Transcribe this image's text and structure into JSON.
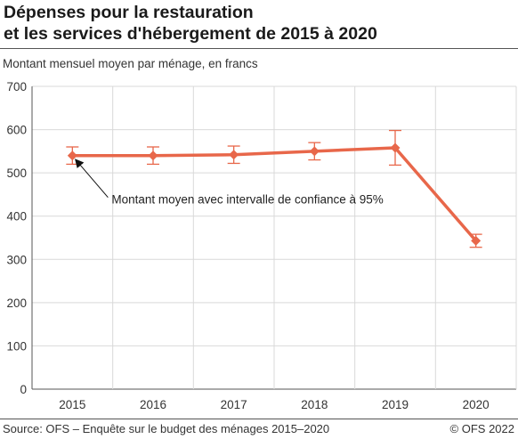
{
  "title_line1": "Dépenses pour la restauration",
  "title_line2": "et les services d'hébergement de 2015 à 2020",
  "footer": {
    "source": "Source: OFS – Enquête sur le budget des ménages 2015–2020",
    "copyright": "© OFS 2022"
  },
  "colors": {
    "series": "#e8674a",
    "grid": "#d9d9d9",
    "axis": "#555555"
  },
  "chart_data": {
    "type": "line",
    "title": "Dépenses pour la restauration et les services d'hébergement de 2015 à 2020",
    "ylabel": "Montant mensuel moyen par ménage, en francs",
    "xlabel": "",
    "categories": [
      "2015",
      "2016",
      "2017",
      "2018",
      "2019",
      "2020"
    ],
    "series": [
      {
        "values": [
          540,
          540,
          542,
          550,
          558,
          343
        ],
        "ci_lower": [
          520,
          520,
          522,
          530,
          518,
          328
        ],
        "ci_upper": [
          560,
          560,
          562,
          570,
          598,
          358
        ]
      }
    ],
    "ylim": [
      0,
      700
    ],
    "yticks": [
      0,
      100,
      200,
      300,
      400,
      500,
      600,
      700
    ],
    "grid": true,
    "legend": "none",
    "annotation": {
      "text": "Montant moyen avec intervalle de confiance à 95%",
      "target_category": "2015"
    }
  }
}
